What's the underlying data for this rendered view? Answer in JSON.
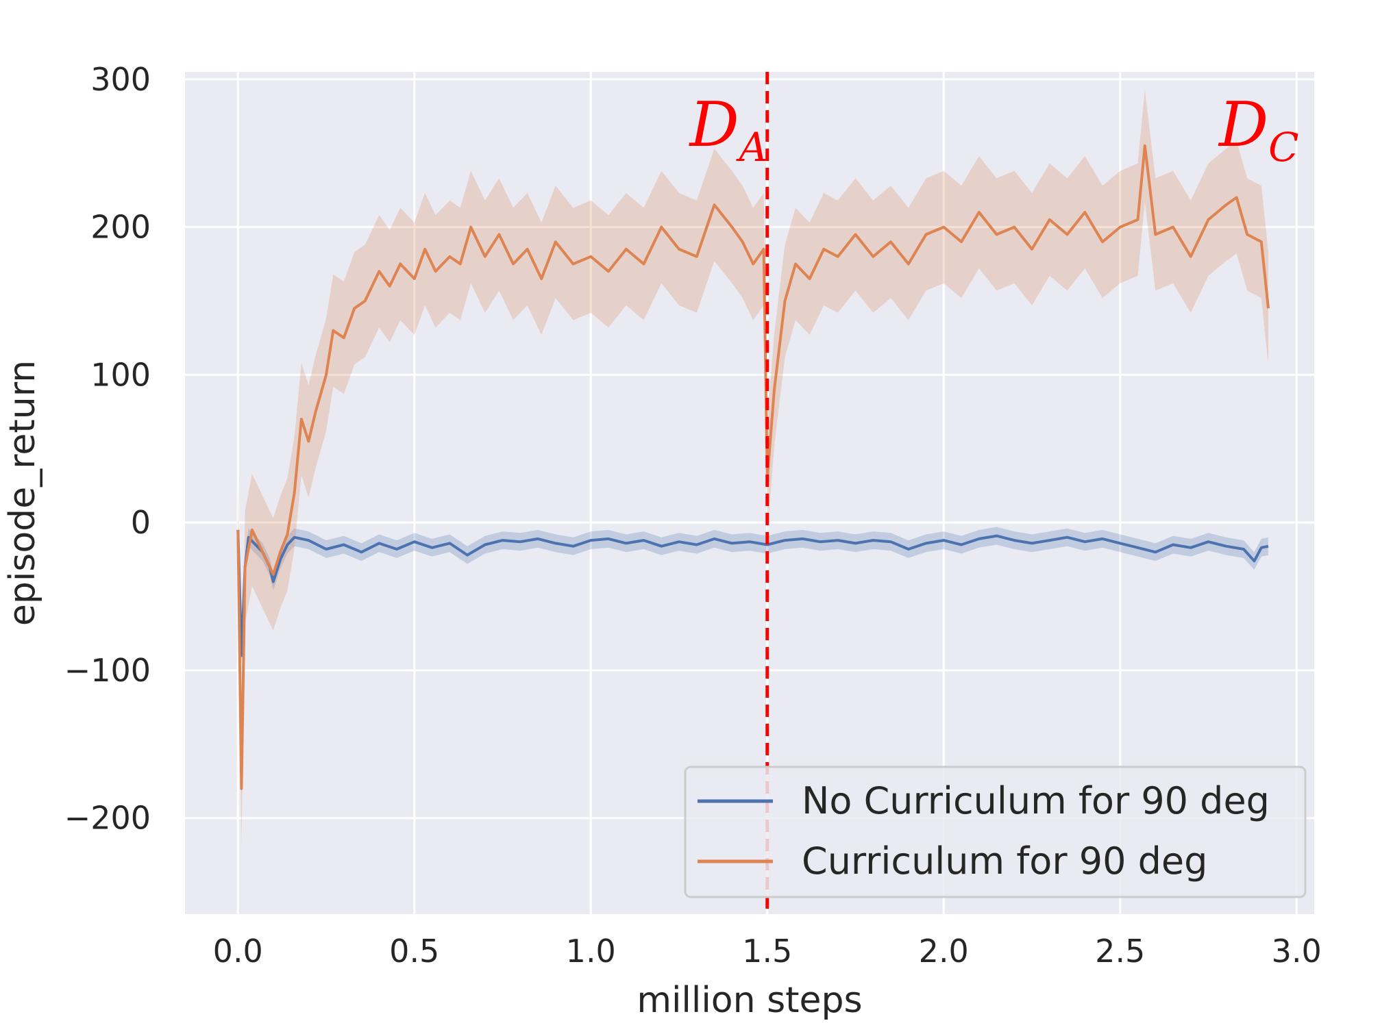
{
  "chart_data": {
    "type": "line",
    "xlabel": "million steps",
    "ylabel": "episode_return",
    "xlim": [
      -0.15,
      3.05
    ],
    "ylim": [
      -265,
      305
    ],
    "xticks": [
      0.0,
      0.5,
      1.0,
      1.5,
      2.0,
      2.5,
      3.0
    ],
    "xtick_labels": [
      "0.0",
      "0.5",
      "1.0",
      "1.5",
      "2.0",
      "2.5",
      "3.0"
    ],
    "yticks": [
      -200,
      -100,
      0,
      100,
      200,
      300
    ],
    "ytick_labels": [
      "−200",
      "−100",
      "0",
      "100",
      "200",
      "300"
    ],
    "grid": true,
    "background": "#eaeaf2",
    "legend_position": "lower right",
    "series": [
      {
        "name": "No Curriculum for 90 deg",
        "color": "#4c72b0",
        "band": 6,
        "points": [
          [
            0.0,
            -5
          ],
          [
            0.01,
            -90
          ],
          [
            0.02,
            -30
          ],
          [
            0.03,
            -10
          ],
          [
            0.05,
            -15
          ],
          [
            0.07,
            -20
          ],
          [
            0.09,
            -30
          ],
          [
            0.1,
            -40
          ],
          [
            0.12,
            -25
          ],
          [
            0.14,
            -15
          ],
          [
            0.16,
            -10
          ],
          [
            0.2,
            -12
          ],
          [
            0.25,
            -18
          ],
          [
            0.3,
            -15
          ],
          [
            0.35,
            -20
          ],
          [
            0.4,
            -14
          ],
          [
            0.45,
            -18
          ],
          [
            0.5,
            -13
          ],
          [
            0.55,
            -17
          ],
          [
            0.6,
            -14
          ],
          [
            0.65,
            -22
          ],
          [
            0.7,
            -15
          ],
          [
            0.75,
            -12
          ],
          [
            0.8,
            -13
          ],
          [
            0.85,
            -11
          ],
          [
            0.9,
            -14
          ],
          [
            0.95,
            -16
          ],
          [
            1.0,
            -12
          ],
          [
            1.05,
            -11
          ],
          [
            1.1,
            -14
          ],
          [
            1.15,
            -12
          ],
          [
            1.2,
            -16
          ],
          [
            1.25,
            -13
          ],
          [
            1.3,
            -15
          ],
          [
            1.35,
            -11
          ],
          [
            1.4,
            -14
          ],
          [
            1.45,
            -13
          ],
          [
            1.5,
            -15
          ],
          [
            1.55,
            -12
          ],
          [
            1.6,
            -11
          ],
          [
            1.65,
            -13
          ],
          [
            1.7,
            -12
          ],
          [
            1.75,
            -14
          ],
          [
            1.8,
            -12
          ],
          [
            1.85,
            -13
          ],
          [
            1.9,
            -18
          ],
          [
            1.95,
            -14
          ],
          [
            2.0,
            -12
          ],
          [
            2.05,
            -15
          ],
          [
            2.1,
            -11
          ],
          [
            2.15,
            -9
          ],
          [
            2.2,
            -12
          ],
          [
            2.25,
            -14
          ],
          [
            2.3,
            -12
          ],
          [
            2.35,
            -10
          ],
          [
            2.4,
            -13
          ],
          [
            2.45,
            -11
          ],
          [
            2.5,
            -14
          ],
          [
            2.55,
            -17
          ],
          [
            2.6,
            -20
          ],
          [
            2.65,
            -15
          ],
          [
            2.7,
            -17
          ],
          [
            2.75,
            -13
          ],
          [
            2.8,
            -16
          ],
          [
            2.85,
            -18
          ],
          [
            2.88,
            -26
          ],
          [
            2.9,
            -17
          ],
          [
            2.92,
            -16
          ]
        ]
      },
      {
        "name": "Curriculum for 90 deg",
        "color": "#dd8452",
        "band": 38,
        "points": [
          [
            0.0,
            -5
          ],
          [
            0.01,
            -180
          ],
          [
            0.02,
            -30
          ],
          [
            0.04,
            -5
          ],
          [
            0.06,
            -15
          ],
          [
            0.08,
            -25
          ],
          [
            0.1,
            -35
          ],
          [
            0.12,
            -20
          ],
          [
            0.14,
            -8
          ],
          [
            0.16,
            20
          ],
          [
            0.18,
            70
          ],
          [
            0.2,
            55
          ],
          [
            0.22,
            75
          ],
          [
            0.25,
            100
          ],
          [
            0.27,
            130
          ],
          [
            0.3,
            125
          ],
          [
            0.33,
            145
          ],
          [
            0.36,
            150
          ],
          [
            0.4,
            170
          ],
          [
            0.43,
            160
          ],
          [
            0.46,
            175
          ],
          [
            0.5,
            165
          ],
          [
            0.53,
            185
          ],
          [
            0.56,
            170
          ],
          [
            0.6,
            180
          ],
          [
            0.63,
            175
          ],
          [
            0.66,
            200
          ],
          [
            0.7,
            180
          ],
          [
            0.74,
            195
          ],
          [
            0.78,
            175
          ],
          [
            0.82,
            185
          ],
          [
            0.86,
            165
          ],
          [
            0.9,
            190
          ],
          [
            0.95,
            175
          ],
          [
            1.0,
            180
          ],
          [
            1.05,
            170
          ],
          [
            1.1,
            185
          ],
          [
            1.15,
            175
          ],
          [
            1.2,
            200
          ],
          [
            1.25,
            185
          ],
          [
            1.3,
            180
          ],
          [
            1.35,
            215
          ],
          [
            1.4,
            200
          ],
          [
            1.43,
            190
          ],
          [
            1.46,
            175
          ],
          [
            1.49,
            185
          ],
          [
            1.5,
            30
          ],
          [
            1.52,
            90
          ],
          [
            1.55,
            150
          ],
          [
            1.58,
            175
          ],
          [
            1.62,
            165
          ],
          [
            1.66,
            185
          ],
          [
            1.7,
            180
          ],
          [
            1.75,
            195
          ],
          [
            1.8,
            180
          ],
          [
            1.85,
            190
          ],
          [
            1.9,
            175
          ],
          [
            1.95,
            195
          ],
          [
            2.0,
            200
          ],
          [
            2.05,
            190
          ],
          [
            2.1,
            210
          ],
          [
            2.15,
            195
          ],
          [
            2.2,
            200
          ],
          [
            2.25,
            185
          ],
          [
            2.3,
            205
          ],
          [
            2.35,
            195
          ],
          [
            2.4,
            210
          ],
          [
            2.45,
            190
          ],
          [
            2.5,
            200
          ],
          [
            2.55,
            205
          ],
          [
            2.57,
            255
          ],
          [
            2.6,
            195
          ],
          [
            2.65,
            200
          ],
          [
            2.7,
            180
          ],
          [
            2.75,
            205
          ],
          [
            2.8,
            215
          ],
          [
            2.83,
            220
          ],
          [
            2.86,
            195
          ],
          [
            2.9,
            190
          ],
          [
            2.92,
            145
          ]
        ]
      }
    ],
    "vline": {
      "x": 1.5,
      "color": "#ff0000",
      "style": "dashed"
    },
    "annotations": [
      {
        "base": "D",
        "sub": "A",
        "x": 1.28,
        "y": 255
      },
      {
        "base": "D",
        "sub": "C",
        "x": 2.78,
        "y": 255
      }
    ]
  }
}
